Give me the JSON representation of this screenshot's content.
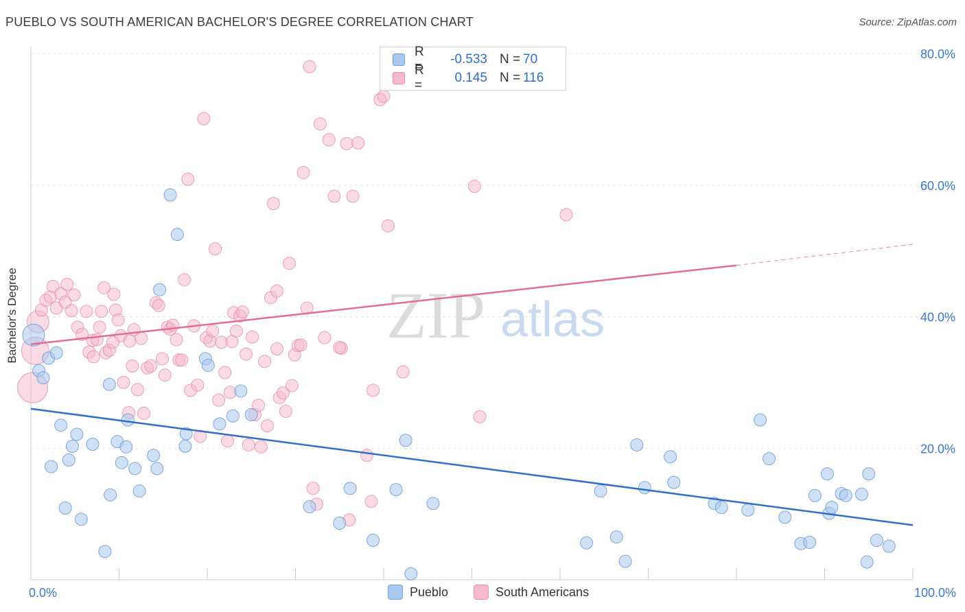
{
  "title": "PUEBLO VS SOUTH AMERICAN BACHELOR'S DEGREE CORRELATION CHART",
  "source": "Source: ZipAtlas.com",
  "colors": {
    "pueblo_fill": "#a9c8ef",
    "pueblo_stroke": "#6f9fdc",
    "pueblo_line": "#2f6fcc",
    "south_fill": "#f6b8cc",
    "south_stroke": "#ea8fad",
    "south_line": "#e36b97",
    "tick_color": "#3b78d4"
  },
  "legend": {
    "rows": [
      {
        "r_label": "R =",
        "r_value": "-0.533",
        "n_label": "N =",
        "n_value": "70"
      },
      {
        "r_label": "R =",
        "r_value": "0.145",
        "n_label": "N =",
        "n_value": "116"
      }
    ]
  },
  "bottom_legend": {
    "pueblo": "Pueblo",
    "south": "South Americans"
  },
  "watermark": {
    "zip": "ZIP",
    "atlas": "atlas"
  },
  "chart_data": {
    "type": "scatter",
    "title": "PUEBLO VS SOUTH AMERICAN BACHELOR'S DEGREE CORRELATION CHART",
    "xlabel": "",
    "ylabel": "Bachelor's Degree",
    "xlim": [
      0,
      100
    ],
    "ylim": [
      0,
      80
    ],
    "x_tick_labels": [
      "0.0%",
      "100.0%"
    ],
    "y_ticks": [
      20,
      40,
      60,
      80
    ],
    "y_tick_labels": [
      "20.0%",
      "40.0%",
      "60.0%",
      "80.0%"
    ],
    "grid": true,
    "series": [
      {
        "name": "Pueblo",
        "r": -0.533,
        "n": 70,
        "trend": {
          "x0": 0,
          "y0": 26.0,
          "x1": 100,
          "y1": 8.3
        },
        "points": [
          [
            0.3,
            37.2
          ],
          [
            0.9,
            31.8
          ],
          [
            1.4,
            30.7
          ],
          [
            2.0,
            33.7
          ],
          [
            2.3,
            17.2
          ],
          [
            2.9,
            34.5
          ],
          [
            3.4,
            23.5
          ],
          [
            3.9,
            10.9
          ],
          [
            4.3,
            18.2
          ],
          [
            4.7,
            20.3
          ],
          [
            5.2,
            22.1
          ],
          [
            5.7,
            9.2
          ],
          [
            7.0,
            20.6
          ],
          [
            8.4,
            4.3
          ],
          [
            9.0,
            12.9
          ],
          [
            8.9,
            29.7
          ],
          [
            9.8,
            21.0
          ],
          [
            10.3,
            17.8
          ],
          [
            10.8,
            20.2
          ],
          [
            11.8,
            16.9
          ],
          [
            12.3,
            13.5
          ],
          [
            11.0,
            24.3
          ],
          [
            13.9,
            18.9
          ],
          [
            14.3,
            16.9
          ],
          [
            14.6,
            44.1
          ],
          [
            15.8,
            58.5
          ],
          [
            16.6,
            52.5
          ],
          [
            17.6,
            22.2
          ],
          [
            17.5,
            20.3
          ],
          [
            19.8,
            33.6
          ],
          [
            20.1,
            32.6
          ],
          [
            21.4,
            23.7
          ],
          [
            22.9,
            24.9
          ],
          [
            23.8,
            28.7
          ],
          [
            25.0,
            25.1
          ],
          [
            31.6,
            11.1
          ],
          [
            35.0,
            8.6
          ],
          [
            36.2,
            13.9
          ],
          [
            38.8,
            6.0
          ],
          [
            41.4,
            13.7
          ],
          [
            42.5,
            21.2
          ],
          [
            43.1,
            0.9
          ],
          [
            45.6,
            11.6
          ],
          [
            63.0,
            5.6
          ],
          [
            64.6,
            13.5
          ],
          [
            66.4,
            6.5
          ],
          [
            67.4,
            2.8
          ],
          [
            68.7,
            20.5
          ],
          [
            69.6,
            14.0
          ],
          [
            72.5,
            18.7
          ],
          [
            72.9,
            14.8
          ],
          [
            77.5,
            11.6
          ],
          [
            78.3,
            11.0
          ],
          [
            81.3,
            10.6
          ],
          [
            82.7,
            24.3
          ],
          [
            83.7,
            18.4
          ],
          [
            85.5,
            9.5
          ],
          [
            87.3,
            5.5
          ],
          [
            88.3,
            5.7
          ],
          [
            88.9,
            12.8
          ],
          [
            90.3,
            16.1
          ],
          [
            90.5,
            10.1
          ],
          [
            90.8,
            11.0
          ],
          [
            91.9,
            13.1
          ],
          [
            92.4,
            12.8
          ],
          [
            95.0,
            16.1
          ],
          [
            94.8,
            2.7
          ],
          [
            95.9,
            6.0
          ],
          [
            97.3,
            5.1
          ],
          [
            94.2,
            13.0
          ]
        ]
      },
      {
        "name": "South Americans",
        "r": 0.145,
        "n": 116,
        "trend": {
          "x0": 0,
          "y0": 35.8,
          "x1": 80,
          "y1": 47.8,
          "dash_x1": 100,
          "dash_y1": 51.0
        },
        "points": [
          [
            0.2,
            29.2
          ],
          [
            0.5,
            34.8
          ],
          [
            0.8,
            39.2
          ],
          [
            1.2,
            41.0
          ],
          [
            1.7,
            42.5
          ],
          [
            2.2,
            43.0
          ],
          [
            2.5,
            44.6
          ],
          [
            2.9,
            41.3
          ],
          [
            3.4,
            43.5
          ],
          [
            3.9,
            42.2
          ],
          [
            4.1,
            44.9
          ],
          [
            4.6,
            40.9
          ],
          [
            4.9,
            43.3
          ],
          [
            5.3,
            38.4
          ],
          [
            5.8,
            37.3
          ],
          [
            6.3,
            40.8
          ],
          [
            6.6,
            34.6
          ],
          [
            7.0,
            36.4
          ],
          [
            7.1,
            33.9
          ],
          [
            7.5,
            36.5
          ],
          [
            7.8,
            38.4
          ],
          [
            8.0,
            40.8
          ],
          [
            8.3,
            44.4
          ],
          [
            8.5,
            34.5
          ],
          [
            8.9,
            34.9
          ],
          [
            9.4,
            43.4
          ],
          [
            9.6,
            41.0
          ],
          [
            9.9,
            39.5
          ],
          [
            10.2,
            37.1
          ],
          [
            10.5,
            30.0
          ],
          [
            11.1,
            25.4
          ],
          [
            11.2,
            36.3
          ],
          [
            11.5,
            32.5
          ],
          [
            11.7,
            38.0
          ],
          [
            12.1,
            28.9
          ],
          [
            12.5,
            36.7
          ],
          [
            12.8,
            25.3
          ],
          [
            13.2,
            32.2
          ],
          [
            13.6,
            32.5
          ],
          [
            14.2,
            42.1
          ],
          [
            14.5,
            41.7
          ],
          [
            14.9,
            33.6
          ],
          [
            15.2,
            31.1
          ],
          [
            15.5,
            38.4
          ],
          [
            15.8,
            38.1
          ],
          [
            16.1,
            38.7
          ],
          [
            16.5,
            36.5
          ],
          [
            16.8,
            33.4
          ],
          [
            17.1,
            33.4
          ],
          [
            17.4,
            45.6
          ],
          [
            17.8,
            60.9
          ],
          [
            18.1,
            28.8
          ],
          [
            18.5,
            38.6
          ],
          [
            18.9,
            29.6
          ],
          [
            19.2,
            21.8
          ],
          [
            19.6,
            70.1
          ],
          [
            19.9,
            36.8
          ],
          [
            20.3,
            36.3
          ],
          [
            20.6,
            37.8
          ],
          [
            20.9,
            50.3
          ],
          [
            21.3,
            27.3
          ],
          [
            21.6,
            36.1
          ],
          [
            22.0,
            31.5
          ],
          [
            22.3,
            21.1
          ],
          [
            22.6,
            28.5
          ],
          [
            23.0,
            40.6
          ],
          [
            23.3,
            37.8
          ],
          [
            23.7,
            40.1
          ],
          [
            24.0,
            40.7
          ],
          [
            24.4,
            34.3
          ],
          [
            24.7,
            20.5
          ],
          [
            25.1,
            36.9
          ],
          [
            25.4,
            25.1
          ],
          [
            25.8,
            26.5
          ],
          [
            26.1,
            20.2
          ],
          [
            26.5,
            33.2
          ],
          [
            26.8,
            23.4
          ],
          [
            27.2,
            42.9
          ],
          [
            27.5,
            57.2
          ],
          [
            27.9,
            43.9
          ],
          [
            28.2,
            27.7
          ],
          [
            28.6,
            28.4
          ],
          [
            28.9,
            25.6
          ],
          [
            29.3,
            48.1
          ],
          [
            29.6,
            29.5
          ],
          [
            29.9,
            34.2
          ],
          [
            30.3,
            35.6
          ],
          [
            30.6,
            35.7
          ],
          [
            30.9,
            61.9
          ],
          [
            31.3,
            41.3
          ],
          [
            31.6,
            78.0
          ],
          [
            32.0,
            13.9
          ],
          [
            32.4,
            11.5
          ],
          [
            32.8,
            69.3
          ],
          [
            33.8,
            66.9
          ],
          [
            34.4,
            58.3
          ],
          [
            35.2,
            35.2
          ],
          [
            35.8,
            66.3
          ],
          [
            36.1,
            9.1
          ],
          [
            36.5,
            58.3
          ],
          [
            37.1,
            66.4
          ],
          [
            38.1,
            18.9
          ],
          [
            38.6,
            11.9
          ],
          [
            38.8,
            28.8
          ],
          [
            39.6,
            73.0
          ],
          [
            40.0,
            73.5
          ],
          [
            40.5,
            53.8
          ],
          [
            42.2,
            31.6
          ],
          [
            50.3,
            59.8
          ],
          [
            50.9,
            24.8
          ],
          [
            60.7,
            55.5
          ],
          [
            35.0,
            35.3
          ],
          [
            33.3,
            36.8
          ],
          [
            27.9,
            35.1
          ],
          [
            22.8,
            36.2
          ],
          [
            9.3,
            36.1
          ]
        ]
      }
    ]
  }
}
